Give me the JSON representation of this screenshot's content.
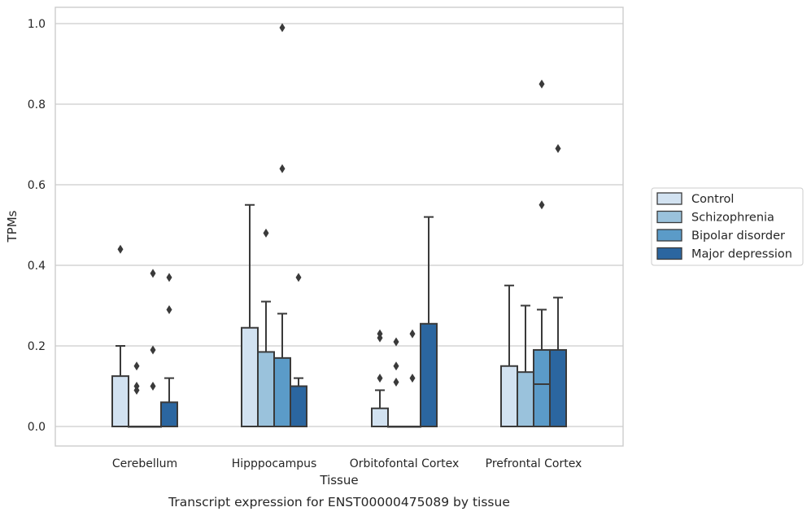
{
  "chart_data": {
    "type": "box",
    "xlabel": "Tissue",
    "ylabel": "TPMs",
    "caption": "Transcript expression for ENST00000475089 by tissue",
    "ylim": [
      -0.048,
      1.04
    ],
    "yticks": [
      0.0,
      0.2,
      0.4,
      0.6,
      0.8,
      1.0
    ],
    "ytick_labels": [
      "0.0",
      "0.2",
      "0.4",
      "0.6",
      "0.8",
      "1.0"
    ],
    "grid": "horizontal",
    "legend_position": "right",
    "categories": [
      "Cerebellum",
      "Hipppocampus",
      "Orbitofontal Cortex",
      "Prefrontal Cortex"
    ],
    "series": [
      {
        "name": "Control",
        "color": "#d2e2f1",
        "boxes": [
          {
            "min": 0.0,
            "q1": 0.0,
            "median": 0.0,
            "q3": 0.125,
            "max": 0.2,
            "outliers": [
              0.44
            ]
          },
          {
            "min": 0.0,
            "q1": 0.0,
            "median": 0.0,
            "q3": 0.245,
            "max": 0.55,
            "outliers": []
          },
          {
            "min": 0.0,
            "q1": 0.0,
            "median": 0.0,
            "q3": 0.045,
            "max": 0.09,
            "outliers": [
              0.23,
              0.22,
              0.12
            ]
          },
          {
            "min": 0.0,
            "q1": 0.0,
            "median": 0.0,
            "q3": 0.15,
            "max": 0.35,
            "outliers": []
          }
        ]
      },
      {
        "name": "Schizophrenia",
        "color": "#9ac2dc",
        "boxes": [
          {
            "min": 0.0,
            "q1": 0.0,
            "median": 0.0,
            "q3": 0.0,
            "max": 0.0,
            "outliers": [
              0.15,
              0.1,
              0.09
            ]
          },
          {
            "min": 0.0,
            "q1": 0.0,
            "median": 0.0,
            "q3": 0.185,
            "max": 0.31,
            "outliers": [
              0.48
            ]
          },
          {
            "min": 0.0,
            "q1": 0.0,
            "median": 0.0,
            "q3": 0.0,
            "max": 0.0,
            "outliers": [
              0.21,
              0.15,
              0.11
            ]
          },
          {
            "min": 0.0,
            "q1": 0.0,
            "median": 0.0,
            "q3": 0.135,
            "max": 0.3,
            "outliers": []
          }
        ]
      },
      {
        "name": "Bipolar disorder",
        "color": "#5b9bc8",
        "boxes": [
          {
            "min": 0.0,
            "q1": 0.0,
            "median": 0.0,
            "q3": 0.0,
            "max": 0.0,
            "outliers": [
              0.38,
              0.19,
              0.1
            ]
          },
          {
            "min": 0.0,
            "q1": 0.0,
            "median": 0.0,
            "q3": 0.17,
            "max": 0.28,
            "outliers": [
              0.99,
              0.64
            ]
          },
          {
            "min": 0.0,
            "q1": 0.0,
            "median": 0.0,
            "q3": 0.0,
            "max": 0.0,
            "outliers": [
              0.23,
              0.12
            ]
          },
          {
            "min": 0.0,
            "q1": 0.0,
            "median": 0.105,
            "q3": 0.19,
            "max": 0.29,
            "outliers": [
              0.85,
              0.55
            ]
          }
        ]
      },
      {
        "name": "Major depression",
        "color": "#2b66a0",
        "boxes": [
          {
            "min": 0.0,
            "q1": 0.0,
            "median": 0.0,
            "q3": 0.06,
            "max": 0.12,
            "outliers": [
              0.37,
              0.29
            ]
          },
          {
            "min": 0.0,
            "q1": 0.0,
            "median": 0.0,
            "q3": 0.1,
            "max": 0.12,
            "outliers": [
              0.37
            ]
          },
          {
            "min": 0.0,
            "q1": 0.0,
            "median": 0.0,
            "q3": 0.255,
            "max": 0.52,
            "outliers": []
          },
          {
            "min": 0.0,
            "q1": 0.0,
            "median": 0.0,
            "q3": 0.19,
            "max": 0.32,
            "outliers": [
              0.69
            ]
          }
        ]
      }
    ]
  }
}
